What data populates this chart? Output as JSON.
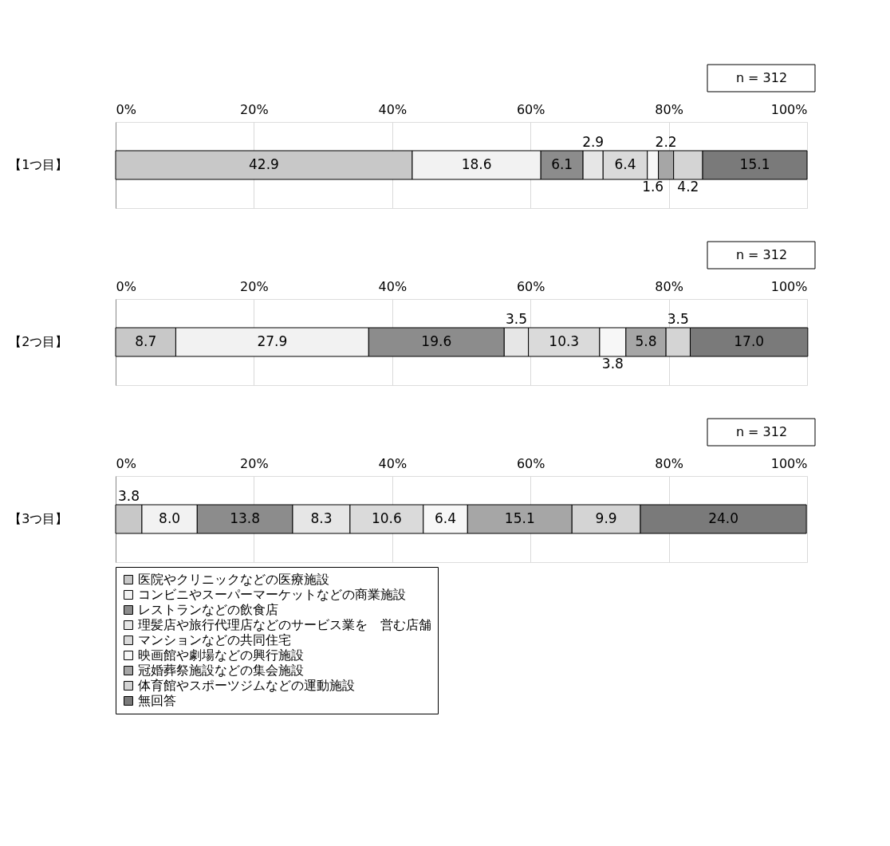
{
  "chart_data": [
    {
      "type": "bar",
      "orientation": "horizontal",
      "stacked": true,
      "categories": [
        "【1つ目】"
      ],
      "xlim": [
        0,
        100
      ],
      "xticks": [
        {
          "value": 0,
          "label": "0%"
        },
        {
          "value": 20,
          "label": "20%"
        },
        {
          "value": 40,
          "label": "40%"
        },
        {
          "value": 60,
          "label": "60%"
        },
        {
          "value": 80,
          "label": "80%"
        },
        {
          "value": 100,
          "label": "100%"
        }
      ],
      "grid": "x",
      "annotations": [
        "n = 312"
      ],
      "series": [
        {
          "color": "#c8c8c8",
          "values": [
            42.9
          ],
          "value_labels": [
            "42.9"
          ]
        },
        {
          "color": "#f2f2f2",
          "values": [
            18.6
          ],
          "value_labels": [
            "18.6"
          ]
        },
        {
          "color": "#8c8c8c",
          "values": [
            6.1
          ],
          "value_labels": [
            "6.1"
          ]
        },
        {
          "color": "#e6e6e6",
          "values": [
            2.9
          ],
          "value_labels": [
            "2.9"
          ]
        },
        {
          "color": "#dadada",
          "values": [
            6.4
          ],
          "value_labels": [
            "6.4"
          ]
        },
        {
          "color": "#f7f7f7",
          "values": [
            1.6
          ],
          "value_labels": [
            "1.6"
          ]
        },
        {
          "color": "#a6a6a6",
          "values": [
            2.2
          ],
          "value_labels": [
            "2.2"
          ]
        },
        {
          "color": "#d4d4d4",
          "values": [
            4.2
          ],
          "value_labels": [
            "4.2"
          ]
        },
        {
          "color": "#7a7a7a",
          "values": [
            15.1
          ],
          "value_labels": [
            "15.1"
          ]
        }
      ]
    },
    {
      "type": "bar",
      "orientation": "horizontal",
      "stacked": true,
      "categories": [
        "【2つ目】"
      ],
      "xlim": [
        0,
        100
      ],
      "xticks": [
        {
          "value": 0,
          "label": "0%"
        },
        {
          "value": 20,
          "label": "20%"
        },
        {
          "value": 40,
          "label": "40%"
        },
        {
          "value": 60,
          "label": "60%"
        },
        {
          "value": 80,
          "label": "80%"
        },
        {
          "value": 100,
          "label": "100%"
        }
      ],
      "grid": "x",
      "annotations": [
        "n = 312"
      ],
      "series": [
        {
          "color": "#c8c8c8",
          "values": [
            8.7
          ],
          "value_labels": [
            "8.7"
          ]
        },
        {
          "color": "#f2f2f2",
          "values": [
            27.9
          ],
          "value_labels": [
            "27.9"
          ]
        },
        {
          "color": "#8c8c8c",
          "values": [
            19.6
          ],
          "value_labels": [
            "19.6"
          ]
        },
        {
          "color": "#e6e6e6",
          "values": [
            3.5
          ],
          "value_labels": [
            "3.5"
          ]
        },
        {
          "color": "#dadada",
          "values": [
            10.3
          ],
          "value_labels": [
            "10.3"
          ]
        },
        {
          "color": "#f7f7f7",
          "values": [
            3.8
          ],
          "value_labels": [
            "3.8"
          ]
        },
        {
          "color": "#a6a6a6",
          "values": [
            5.8
          ],
          "value_labels": [
            "5.8"
          ]
        },
        {
          "color": "#d4d4d4",
          "values": [
            3.5
          ],
          "value_labels": [
            "3.5"
          ]
        },
        {
          "color": "#7a7a7a",
          "values": [
            17.0
          ],
          "value_labels": [
            "17.0"
          ]
        }
      ]
    },
    {
      "type": "bar",
      "orientation": "horizontal",
      "stacked": true,
      "categories": [
        "【3つ目】"
      ],
      "xlim": [
        0,
        100
      ],
      "xticks": [
        {
          "value": 0,
          "label": "0%"
        },
        {
          "value": 20,
          "label": "20%"
        },
        {
          "value": 40,
          "label": "40%"
        },
        {
          "value": 60,
          "label": "60%"
        },
        {
          "value": 80,
          "label": "80%"
        },
        {
          "value": 100,
          "label": "100%"
        }
      ],
      "grid": "x",
      "legend": "bottom",
      "annotations": [
        "n = 312"
      ],
      "series": [
        {
          "name": "医院やクリニックなどの医療施設",
          "color": "#c8c8c8",
          "values": [
            3.8
          ],
          "value_labels": [
            "3.8"
          ]
        },
        {
          "name": "コンビニやスーパーマーケットなどの商業施設",
          "color": "#f2f2f2",
          "values": [
            8.0
          ],
          "value_labels": [
            "8.0"
          ]
        },
        {
          "name": "レストランなどの飲食店",
          "color": "#8c8c8c",
          "values": [
            13.8
          ],
          "value_labels": [
            "13.8"
          ]
        },
        {
          "name": "理髪店や旅行代理店などのサービス業を　営む店舗",
          "color": "#e6e6e6",
          "values": [
            8.3
          ],
          "value_labels": [
            "8.3"
          ]
        },
        {
          "name": "マンションなどの共同住宅",
          "color": "#dadada",
          "values": [
            10.6
          ],
          "value_labels": [
            "10.6"
          ]
        },
        {
          "name": "映画館や劇場などの興行施設",
          "color": "#f7f7f7",
          "values": [
            6.4
          ],
          "value_labels": [
            "6.4"
          ]
        },
        {
          "name": "冠婚葬祭施設などの集会施設",
          "color": "#a6a6a6",
          "values": [
            15.1
          ],
          "value_labels": [
            "15.1"
          ]
        },
        {
          "name": "体育館やスポーツジムなどの運動施設",
          "color": "#d4d4d4",
          "values": [
            9.9
          ],
          "value_labels": [
            "9.9"
          ]
        },
        {
          "name": "無回答",
          "color": "#7a7a7a",
          "values": [
            24.0
          ],
          "value_labels": [
            "24.0"
          ]
        }
      ]
    }
  ]
}
